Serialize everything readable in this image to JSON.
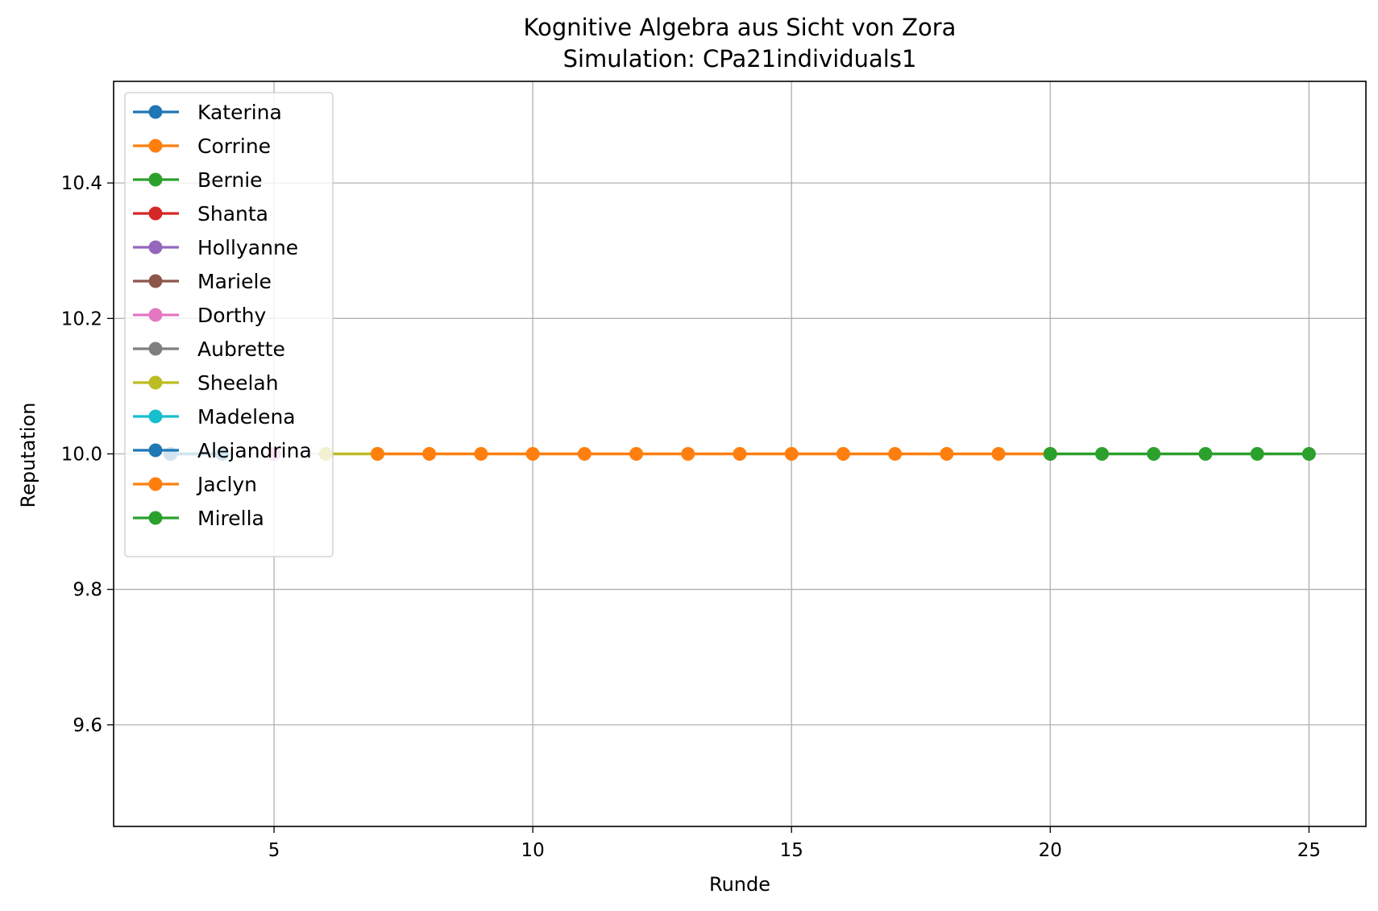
{
  "chart_data": {
    "type": "line",
    "title": "Kognitive Algebra aus Sicht von Zora",
    "subtitle": "Simulation: CPa21individuals1",
    "xlabel": "Runde",
    "ylabel": "Reputation",
    "xlim": [
      1.9,
      26.1
    ],
    "ylim": [
      9.45,
      10.55
    ],
    "xticks": [
      5,
      10,
      15,
      20,
      25
    ],
    "xtick_labels": [
      "5",
      "10",
      "15",
      "20",
      "25"
    ],
    "yticks": [
      9.6,
      9.8,
      10.0,
      10.2,
      10.4
    ],
    "ytick_labels": [
      "9.6",
      "9.8",
      "10.0",
      "10.2",
      "10.4"
    ],
    "grid": true,
    "legend_position": "upper-left",
    "series": [
      {
        "name": "Katerina",
        "color": "#1f77b4",
        "x": [
          3
        ],
        "y": [
          10.0
        ]
      },
      {
        "name": "Corrine",
        "color": "#ff7f0e",
        "x": [
          4
        ],
        "y": [
          10.0
        ]
      },
      {
        "name": "Bernie",
        "color": "#2ca02c",
        "x": [
          4
        ],
        "y": [
          10.0
        ]
      },
      {
        "name": "Shanta",
        "color": "#d62728",
        "x": [
          5
        ],
        "y": [
          10.0
        ]
      },
      {
        "name": "Hollyanne",
        "color": "#9467bd",
        "x": [
          5
        ],
        "y": [
          10.0
        ]
      },
      {
        "name": "Mariele",
        "color": "#8c564b",
        "x": [
          5
        ],
        "y": [
          10.0
        ]
      },
      {
        "name": "Dorthy",
        "color": "#e377c2",
        "x": [
          5
        ],
        "y": [
          10.0
        ]
      },
      {
        "name": "Aubrette",
        "color": "#7f7f7f",
        "x": [
          6
        ],
        "y": [
          10.0
        ]
      },
      {
        "name": "Sheelah",
        "color": "#bcbd22",
        "x": [
          6,
          7
        ],
        "y": [
          10.0,
          10.0
        ]
      },
      {
        "name": "Madelena",
        "color": "#17becf",
        "x": [
          3,
          4
        ],
        "y": [
          10.0,
          10.0
        ]
      },
      {
        "name": "Alejandrina",
        "color": "#1f77b4",
        "x": [
          3,
          4
        ],
        "y": [
          10.0,
          10.0
        ]
      },
      {
        "name": "Jaclyn",
        "color": "#ff7f0e",
        "x": [
          7,
          8,
          9,
          10,
          11,
          12,
          13,
          14,
          15,
          16,
          17,
          18,
          19,
          20
        ],
        "y": [
          10.0,
          10.0,
          10.0,
          10.0,
          10.0,
          10.0,
          10.0,
          10.0,
          10.0,
          10.0,
          10.0,
          10.0,
          10.0,
          10.0
        ]
      },
      {
        "name": "Mirella",
        "color": "#2ca02c",
        "x": [
          20,
          21,
          22,
          23,
          24,
          25
        ],
        "y": [
          10.0,
          10.0,
          10.0,
          10.0,
          10.0,
          10.0
        ]
      }
    ]
  }
}
